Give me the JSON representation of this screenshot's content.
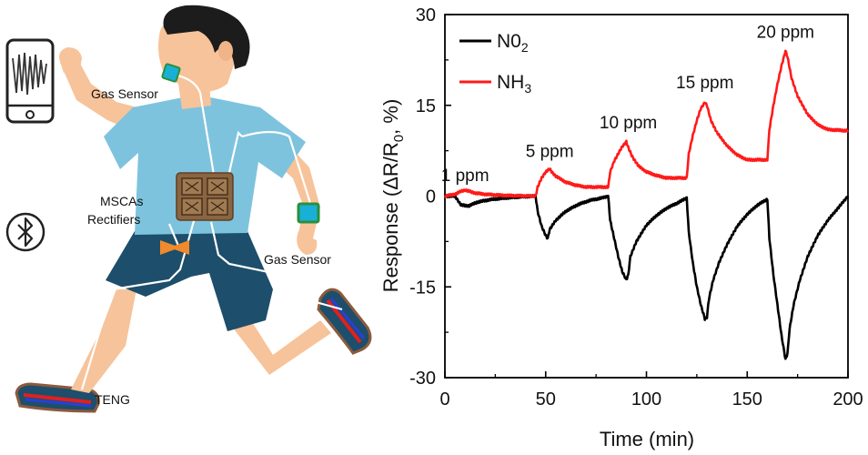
{
  "illustration": {
    "labels": {
      "gas_sensor_neck": "Gas Sensor",
      "mscas_line1": "MSCAs",
      "mscas_line2": "Rectifiers",
      "gas_sensor_wrist": "Gas Sensor",
      "teng": "TENG"
    },
    "icons": [
      "smartphone-icon",
      "bluetooth-icon"
    ],
    "colors": {
      "skin": "#f7c39a",
      "hair": "#1c1c1c",
      "shirt": "#7ec3de",
      "shorts": "#1d4e6b",
      "sensor": "#18b0d6",
      "device": "#8c6441",
      "teng_red": "#e02020",
      "teng_blue": "#2a3fd6"
    }
  },
  "chart_data": {
    "type": "line",
    "xlabel": "Time (min)",
    "ylabel_parts": {
      "main": "Response (ΔR/R",
      "sub": "0",
      "tail": ", %)"
    },
    "xlim": [
      0,
      200
    ],
    "ylim": [
      -30,
      30
    ],
    "x_ticks": [
      "0",
      "50",
      "100",
      "150",
      "200"
    ],
    "y_ticks": [
      "30",
      "15",
      "0",
      "-15",
      "-30"
    ],
    "grid": false,
    "legend_position": "top-left",
    "series": [
      {
        "name": "NO2",
        "legend_main": "N0",
        "legend_sub": "2",
        "color": "#000000",
        "points": [
          [
            0,
            0
          ],
          [
            5,
            0
          ],
          [
            8,
            -1.5
          ],
          [
            12,
            -1.6
          ],
          [
            16,
            -1.0
          ],
          [
            22,
            -0.6
          ],
          [
            30,
            -0.3
          ],
          [
            38,
            -0.1
          ],
          [
            45,
            0
          ],
          [
            46,
            -2.5
          ],
          [
            48,
            -5
          ],
          [
            50,
            -6.5
          ],
          [
            51,
            -7
          ],
          [
            52,
            -5.5
          ],
          [
            55,
            -4
          ],
          [
            60,
            -2.5
          ],
          [
            66,
            -1.4
          ],
          [
            72,
            -0.7
          ],
          [
            78,
            -0.3
          ],
          [
            81,
            0
          ],
          [
            82,
            -4
          ],
          [
            84,
            -7
          ],
          [
            86,
            -10
          ],
          [
            88,
            -12.5
          ],
          [
            90,
            -13.8
          ],
          [
            91,
            -13
          ],
          [
            92,
            -10
          ],
          [
            95,
            -7.5
          ],
          [
            100,
            -4.8
          ],
          [
            105,
            -3.2
          ],
          [
            110,
            -2
          ],
          [
            115,
            -1.2
          ],
          [
            120,
            -0.3
          ],
          [
            121,
            -6
          ],
          [
            123,
            -11
          ],
          [
            125,
            -15
          ],
          [
            127,
            -18
          ],
          [
            129,
            -20.3
          ],
          [
            130,
            -20
          ],
          [
            131,
            -17
          ],
          [
            133,
            -14
          ],
          [
            136,
            -11
          ],
          [
            140,
            -8
          ],
          [
            145,
            -5
          ],
          [
            150,
            -3
          ],
          [
            155,
            -1.5
          ],
          [
            160,
            -0.5
          ],
          [
            161,
            -7
          ],
          [
            163,
            -13
          ],
          [
            165,
            -18
          ],
          [
            167,
            -23
          ],
          [
            169,
            -27
          ],
          [
            170,
            -26
          ],
          [
            171,
            -22
          ],
          [
            173,
            -18
          ],
          [
            176,
            -14
          ],
          [
            180,
            -10
          ],
          [
            185,
            -6.5
          ],
          [
            190,
            -4
          ],
          [
            195,
            -2
          ],
          [
            200,
            0
          ]
        ]
      },
      {
        "name": "NH3",
        "legend_main": "NH",
        "legend_sub": "3",
        "color": "#ff1a1a",
        "points": [
          [
            0,
            0
          ],
          [
            5,
            0.3
          ],
          [
            8,
            0.8
          ],
          [
            10,
            1.0
          ],
          [
            12,
            0.8
          ],
          [
            15,
            0.5
          ],
          [
            20,
            0.3
          ],
          [
            30,
            0.1
          ],
          [
            45,
            0
          ],
          [
            46,
            1.5
          ],
          [
            48,
            3
          ],
          [
            50,
            4
          ],
          [
            52,
            4.5
          ],
          [
            53,
            4
          ],
          [
            55,
            3.3
          ],
          [
            60,
            2.3
          ],
          [
            65,
            1.8
          ],
          [
            70,
            1.5
          ],
          [
            81,
            1.5
          ],
          [
            82,
            4
          ],
          [
            84,
            5.8
          ],
          [
            86,
            7
          ],
          [
            88,
            8.2
          ],
          [
            90,
            9
          ],
          [
            91,
            8
          ],
          [
            93,
            6.5
          ],
          [
            96,
            5
          ],
          [
            100,
            4
          ],
          [
            105,
            3.4
          ],
          [
            110,
            3
          ],
          [
            120,
            3
          ],
          [
            121,
            7
          ],
          [
            123,
            10
          ],
          [
            125,
            12.5
          ],
          [
            127,
            14.5
          ],
          [
            129,
            15.5
          ],
          [
            130,
            15
          ],
          [
            132,
            12.5
          ],
          [
            135,
            10.5
          ],
          [
            140,
            8.3
          ],
          [
            145,
            6.8
          ],
          [
            150,
            6
          ],
          [
            160,
            6
          ],
          [
            161,
            11
          ],
          [
            163,
            15
          ],
          [
            165,
            18.5
          ],
          [
            167,
            21.5
          ],
          [
            169,
            24
          ],
          [
            170,
            23
          ],
          [
            172,
            19.5
          ],
          [
            175,
            16.5
          ],
          [
            180,
            13.5
          ],
          [
            185,
            11.8
          ],
          [
            190,
            11
          ],
          [
            200,
            10.8
          ]
        ]
      }
    ],
    "annotations": [
      {
        "text": "1 ppm",
        "x": 10,
        "y": 2.5
      },
      {
        "text": "5 ppm",
        "x": 52,
        "y": 6.5
      },
      {
        "text": "10 ppm",
        "x": 91,
        "y": 11.2
      },
      {
        "text": "15 ppm",
        "x": 129,
        "y": 17.8
      },
      {
        "text": "20 ppm",
        "x": 169,
        "y": 26.2
      }
    ]
  }
}
